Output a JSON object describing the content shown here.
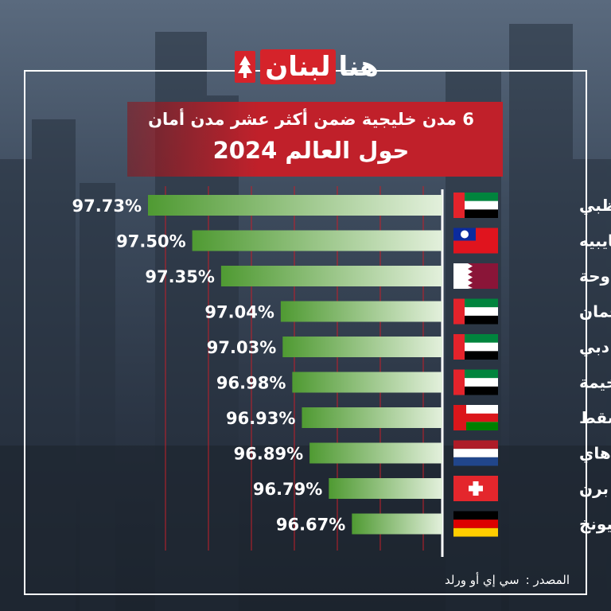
{
  "logo": {
    "word_1": "هنا",
    "word_2": "لبنان"
  },
  "title": {
    "line1": "6 مدن خليجية ضمن أكثر عشر مدن أمان",
    "line2": "حول العالم 2024"
  },
  "source": {
    "label": "المصدر :",
    "value": "سي إي أو ورلد"
  },
  "colors": {
    "accent_red": "#c0202a",
    "bar_dark": "#4f9a32",
    "bar_light": "#e3f0dc"
  },
  "chart_data": {
    "type": "bar",
    "orientation": "horizontal",
    "categories": [
      "ابوظبي",
      "تايبيه",
      "الدوحة",
      "عجمان",
      "دبي",
      "رأس الخيمة",
      "مسقط",
      "لاهاي",
      "برن",
      "ميونخ"
    ],
    "values": [
      97.73,
      97.5,
      97.35,
      97.04,
      97.03,
      96.98,
      96.93,
      96.89,
      96.79,
      96.67
    ],
    "value_labels": [
      "97.73%",
      "97.50%",
      "97.35%",
      "97.04%",
      "97.03%",
      "96.98%",
      "96.93%",
      "96.89%",
      "96.79%",
      "96.67%"
    ],
    "flags": [
      "uae",
      "taiwan",
      "qatar",
      "uae",
      "uae",
      "uae",
      "oman",
      "netherlands",
      "switzerland",
      "germany"
    ],
    "gridlines": true
  }
}
